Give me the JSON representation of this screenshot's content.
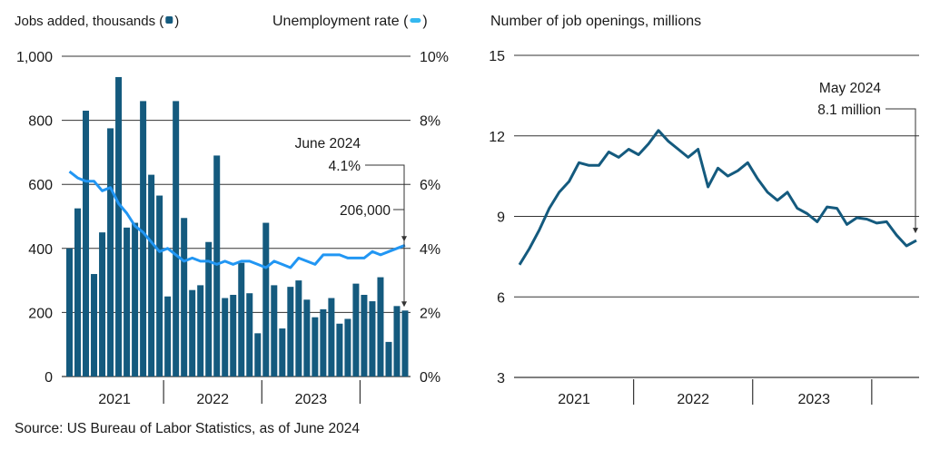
{
  "source": "Source: US Bureau of Labor Statistics, as of June 2024",
  "colors": {
    "bar": "#145a7e",
    "unemployment": "#2196f3",
    "openings": "#145a7e",
    "grid": "#333333"
  },
  "chart_data": [
    {
      "type": "bar",
      "secondary_type": "line",
      "left_label_text": "Jobs added, thousands (",
      "left_label_close": ")",
      "right_label_text": "Unemployment rate (",
      "right_label_close": ")",
      "left_ticks": [
        "0",
        "200",
        "400",
        "600",
        "800",
        "1,000"
      ],
      "right_ticks": [
        "0%",
        "2%",
        "4%",
        "6%",
        "8%",
        "10%"
      ],
      "ylim": [
        0,
        1000
      ],
      "y2lim": [
        0,
        10
      ],
      "year_labels": [
        "2021",
        "2022",
        "2023"
      ],
      "x_start": "2021-01",
      "x_end": "2024-06",
      "series": [
        {
          "name": "Jobs added, thousands",
          "values": [
            400,
            525,
            830,
            320,
            450,
            775,
            935,
            465,
            480,
            860,
            630,
            565,
            250,
            860,
            495,
            270,
            285,
            420,
            690,
            245,
            255,
            355,
            260,
            135,
            480,
            285,
            150,
            280,
            300,
            240,
            185,
            210,
            245,
            165,
            180,
            290,
            255,
            235,
            310,
            108,
            220,
            206
          ]
        },
        {
          "name": "Unemployment rate",
          "values": [
            6.4,
            6.2,
            6.1,
            6.1,
            5.8,
            5.9,
            5.4,
            5.1,
            4.7,
            4.5,
            4.2,
            3.9,
            4.0,
            3.8,
            3.6,
            3.7,
            3.6,
            3.6,
            3.5,
            3.6,
            3.5,
            3.6,
            3.6,
            3.5,
            3.4,
            3.6,
            3.5,
            3.4,
            3.7,
            3.6,
            3.5,
            3.8,
            3.8,
            3.8,
            3.7,
            3.7,
            3.7,
            3.9,
            3.8,
            3.9,
            4.0,
            4.1
          ]
        }
      ],
      "annotations": [
        {
          "line1": "June 2024",
          "line2": "4.1%"
        },
        {
          "line1": "206,000"
        }
      ]
    },
    {
      "type": "line",
      "title": "Number of job openings, millions",
      "ticks": [
        "3",
        "6",
        "9",
        "12",
        "15"
      ],
      "ylim": [
        3,
        15
      ],
      "year_labels": [
        "2021",
        "2022",
        "2023"
      ],
      "x_start": "2021-01",
      "x_end": "2024-05",
      "series": [
        {
          "name": "Job openings, millions",
          "values": [
            7.2,
            7.8,
            8.5,
            9.3,
            9.9,
            10.3,
            11.0,
            10.9,
            10.9,
            11.4,
            11.2,
            11.5,
            11.3,
            11.7,
            12.2,
            11.8,
            11.5,
            11.2,
            11.5,
            10.1,
            10.8,
            10.5,
            10.7,
            11.0,
            10.4,
            9.9,
            9.6,
            9.9,
            9.3,
            9.1,
            8.8,
            9.35,
            9.3,
            8.7,
            8.95,
            8.9,
            8.75,
            8.8,
            8.3,
            7.9,
            8.1
          ]
        }
      ],
      "annotations": [
        {
          "line1": "May 2024",
          "line2": "8.1 million"
        }
      ]
    }
  ]
}
